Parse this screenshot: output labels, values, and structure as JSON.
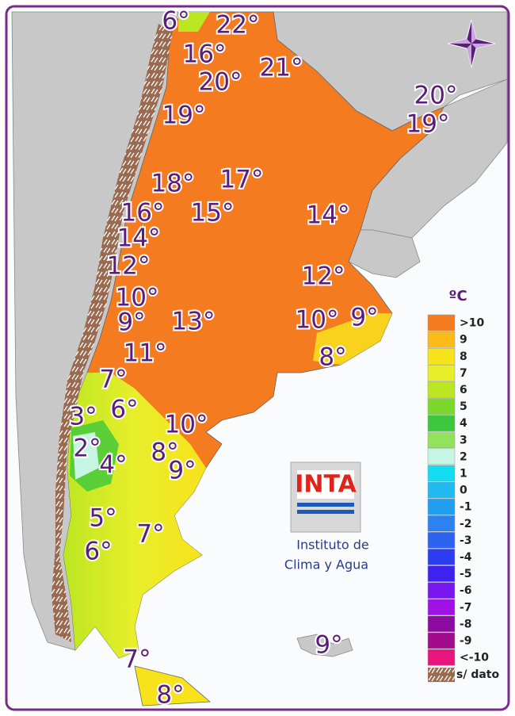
{
  "map": {
    "labels": [
      "6°",
      "22°",
      "16°",
      "21°",
      "20°",
      "20°",
      "19°",
      "19°",
      "18°",
      "17°",
      "16°",
      "15°",
      "14°",
      "14°",
      "12°",
      "12°",
      "10°",
      "10°",
      "9°",
      "9°",
      "13°",
      "11°",
      "8°",
      "7°",
      "3°",
      "6°",
      "10°",
      "2°",
      "8°",
      "4°",
      "9°",
      "5°",
      "7°",
      "6°",
      "9°",
      "7°",
      "8°"
    ],
    "legend": {
      "title": "ºC",
      "items": [
        {
          "label": ">10",
          "color": "#f47b20"
        },
        {
          "label": "9",
          "color": "#fdbb1a"
        },
        {
          "label": "8",
          "color": "#f8e21c"
        },
        {
          "label": "7",
          "color": "#e8ee2a"
        },
        {
          "label": "6",
          "color": "#bce622"
        },
        {
          "label": "5",
          "color": "#7cd82c"
        },
        {
          "label": "4",
          "color": "#3cc83c"
        },
        {
          "label": "3",
          "color": "#92e25e"
        },
        {
          "label": "2",
          "color": "#c6f5e4"
        },
        {
          "label": "1",
          "color": "#16dcf2"
        },
        {
          "label": "0",
          "color": "#20baf0"
        },
        {
          "label": "-1",
          "color": "#209ef0"
        },
        {
          "label": "-2",
          "color": "#2c82f0"
        },
        {
          "label": "-3",
          "color": "#2c64f0"
        },
        {
          "label": "-4",
          "color": "#2c3cf0"
        },
        {
          "label": "-5",
          "color": "#3e22f0"
        },
        {
          "label": "-6",
          "color": "#7a16f0"
        },
        {
          "label": "-7",
          "color": "#a012e6"
        },
        {
          "label": "-8",
          "color": "#8c0ca2"
        },
        {
          "label": "-9",
          "color": "#a20c8c"
        },
        {
          "label": "<-10",
          "color": "#e8167c"
        }
      ],
      "no_data": "s/ dato"
    },
    "logo": {
      "text": "INTA",
      "caption": [
        "Instituto de",
        "Clima y Agua"
      ]
    }
  }
}
